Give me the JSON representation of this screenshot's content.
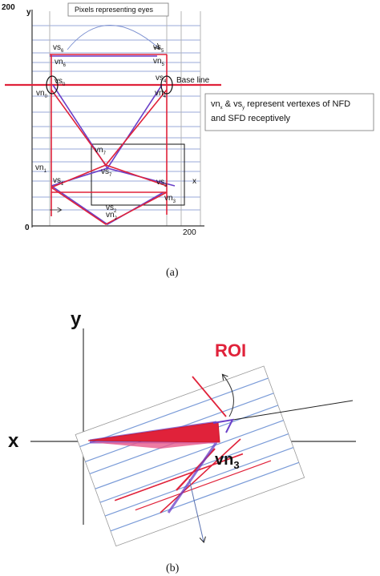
{
  "panel_a": {
    "y_axis": "y",
    "y_max_tick": "200",
    "origin_tick": "0",
    "x_max_tick": "200",
    "x_axis": "x",
    "eyes_label": "Pixels representing eyes",
    "base_line_label": "Base line",
    "note_line1": "vn",
    "note_sub1": "x",
    "note_mid": " & vs",
    "note_sub2": "y",
    "note_rest": " represent vertexes of NFD",
    "note_line2": "and SFD receptively",
    "vertices": {
      "vs6": {
        "base": "vs",
        "sub": "6"
      },
      "vn6": {
        "base": "vn",
        "sub": "6"
      },
      "vs5": {
        "base": "vs",
        "sub": "5"
      },
      "vn5": {
        "base": "vn",
        "sub": "5"
      },
      "vs0": {
        "base": "vs",
        "sub": "0"
      },
      "vn0": {
        "base": "vn",
        "sub": "0"
      },
      "vs4": {
        "base": "vs",
        "sub": "4"
      },
      "vn4": {
        "base": "vn",
        "sub": "4"
      },
      "vn7": {
        "base": "vn",
        "sub": "7"
      },
      "vs7": {
        "base": "vs",
        "sub": "7"
      },
      "vn1": {
        "base": "vn",
        "sub": "1"
      },
      "vs1": {
        "base": "vs",
        "sub": "1"
      },
      "vs3": {
        "base": "vs",
        "sub": "3"
      },
      "vn3": {
        "base": "vn",
        "sub": "3"
      },
      "vs2": {
        "base": "vs",
        "sub": "2"
      },
      "vn2": {
        "base": "vn",
        "sub": "2"
      }
    },
    "caption": "(a)"
  },
  "panel_b": {
    "y_axis": "y",
    "x_axis": "x",
    "roi_label": "ROI",
    "vn3_base": "vn",
    "vn3_sub": "3",
    "caption": "(b)"
  },
  "colors": {
    "red": "#e0223a",
    "purple": "#6a40c8",
    "grid_blue": "#9aa8d8",
    "grid_gray": "#b4b4b4",
    "pink": "#e85a8c"
  }
}
